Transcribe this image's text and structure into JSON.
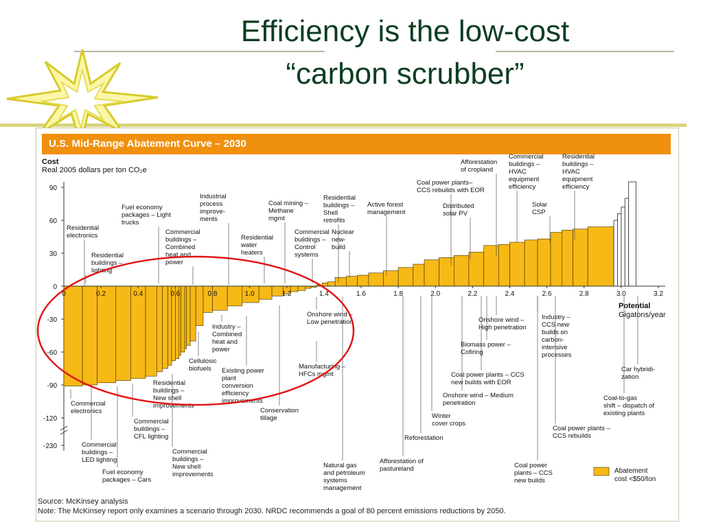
{
  "slide": {
    "title_line1": "Efficiency is the low-cost",
    "title_line2": "“carbon scrubber”"
  },
  "panel": {
    "header": "U.S. Mid-Range Abatement Curve – 2030",
    "source": "Source: McKinsey analysis",
    "note": "Note: The McKinsey report only examines a scenario through 2030. NRDC recommends a goal of 80 percent emissions reductions by 2050."
  },
  "colors": {
    "bar": "#f7b916",
    "header": "#f0900f",
    "title": "#0c3d22",
    "highlight": "#e01515"
  },
  "chart_data": {
    "type": "bar",
    "title": "U.S. Mid-Range Abatement Curve – 2030",
    "ylabel_line1": "Cost",
    "ylabel_line2": "Real 2005 dollars per ton CO₂e",
    "xlabel_line1": "Potential",
    "xlabel_line2": "Gigatons/year",
    "xlim": [
      0,
      3.2
    ],
    "x_ticks": [
      "0.2",
      "0.4",
      "0.6",
      "0.8",
      "1.0",
      "1.2",
      "1.4",
      "1.6",
      "1.8",
      "2.0",
      "2.2",
      "2.4",
      "2.6",
      "2.8",
      "3.0",
      "3.2"
    ],
    "y_ticks": [
      "90",
      "60",
      "30",
      "0",
      "-30",
      "-60",
      "-90",
      "-120",
      "-230"
    ],
    "legend": "Abatement cost <$50/ton",
    "bars": [
      {
        "x0": 0.0,
        "x1": 0.1,
        "y": -91
      },
      {
        "x0": 0.1,
        "x1": 0.18,
        "y": -90
      },
      {
        "x0": 0.18,
        "x1": 0.28,
        "y": -88
      },
      {
        "x0": 0.28,
        "x1": 0.36,
        "y": -86
      },
      {
        "x0": 0.36,
        "x1": 0.44,
        "y": -84
      },
      {
        "x0": 0.44,
        "x1": 0.5,
        "y": -82
      },
      {
        "x0": 0.5,
        "x1": 0.53,
        "y": -78
      },
      {
        "x0": 0.53,
        "x1": 0.56,
        "y": -75
      },
      {
        "x0": 0.56,
        "x1": 0.58,
        "y": -72
      },
      {
        "x0": 0.58,
        "x1": 0.6,
        "y": -68
      },
      {
        "x0": 0.6,
        "x1": 0.62,
        "y": -66
      },
      {
        "x0": 0.62,
        "x1": 0.63,
        "y": -63
      },
      {
        "x0": 0.63,
        "x1": 0.65,
        "y": -60
      },
      {
        "x0": 0.65,
        "x1": 0.66,
        "y": -57
      },
      {
        "x0": 0.66,
        "x1": 0.68,
        "y": -54
      },
      {
        "x0": 0.68,
        "x1": 0.71,
        "y": -50
      },
      {
        "x0": 0.71,
        "x1": 0.75,
        "y": -36
      },
      {
        "x0": 0.75,
        "x1": 0.8,
        "y": -24
      },
      {
        "x0": 0.8,
        "x1": 0.88,
        "y": -22
      },
      {
        "x0": 0.88,
        "x1": 0.96,
        "y": -18
      },
      {
        "x0": 0.96,
        "x1": 1.05,
        "y": -15
      },
      {
        "x0": 1.05,
        "x1": 1.12,
        "y": -12
      },
      {
        "x0": 1.12,
        "x1": 1.18,
        "y": -9
      },
      {
        "x0": 1.18,
        "x1": 1.22,
        "y": -7
      },
      {
        "x0": 1.22,
        "x1": 1.26,
        "y": -5
      },
      {
        "x0": 1.26,
        "x1": 1.3,
        "y": -4
      },
      {
        "x0": 1.3,
        "x1": 1.33,
        "y": -2
      },
      {
        "x0": 1.33,
        "x1": 1.36,
        "y": -1
      },
      {
        "x0": 1.36,
        "x1": 1.39,
        "y": 1
      },
      {
        "x0": 1.39,
        "x1": 1.42,
        "y": 3
      },
      {
        "x0": 1.42,
        "x1": 1.46,
        "y": 4
      },
      {
        "x0": 1.46,
        "x1": 1.52,
        "y": 8
      },
      {
        "x0": 1.52,
        "x1": 1.58,
        "y": 9
      },
      {
        "x0": 1.58,
        "x1": 1.64,
        "y": 10
      },
      {
        "x0": 1.64,
        "x1": 1.72,
        "y": 12
      },
      {
        "x0": 1.72,
        "x1": 1.8,
        "y": 14
      },
      {
        "x0": 1.8,
        "x1": 1.88,
        "y": 17
      },
      {
        "x0": 1.88,
        "x1": 1.94,
        "y": 20
      },
      {
        "x0": 1.94,
        "x1": 2.02,
        "y": 24
      },
      {
        "x0": 2.02,
        "x1": 2.1,
        "y": 26
      },
      {
        "x0": 2.1,
        "x1": 2.18,
        "y": 28
      },
      {
        "x0": 2.18,
        "x1": 2.26,
        "y": 31
      },
      {
        "x0": 2.26,
        "x1": 2.34,
        "y": 37
      },
      {
        "x0": 2.34,
        "x1": 2.4,
        "y": 38
      },
      {
        "x0": 2.4,
        "x1": 2.48,
        "y": 40
      },
      {
        "x0": 2.48,
        "x1": 2.55,
        "y": 42
      },
      {
        "x0": 2.55,
        "x1": 2.62,
        "y": 43
      },
      {
        "x0": 2.62,
        "x1": 2.68,
        "y": 49
      },
      {
        "x0": 2.68,
        "x1": 2.74,
        "y": 51
      },
      {
        "x0": 2.74,
        "x1": 2.82,
        "y": 52
      },
      {
        "x0": 2.82,
        "x1": 2.96,
        "y": 54
      }
    ],
    "over_threshold_bars": [
      {
        "x0": 2.96,
        "x1": 2.98,
        "y": 60
      },
      {
        "x0": 2.98,
        "x1": 3.0,
        "y": 66
      },
      {
        "x0": 3.0,
        "x1": 3.02,
        "y": 72
      },
      {
        "x0": 3.02,
        "x1": 3.04,
        "y": 80
      },
      {
        "x0": 3.04,
        "x1": 3.08,
        "y": 95
      }
    ],
    "annotations": [
      {
        "name": "residential-electronics",
        "x": 0.08,
        "lines": [
          "Residential",
          "electronics"
        ]
      },
      {
        "name": "residential-buildings-lighting",
        "x": 0.16,
        "lines": [
          "Residential",
          "buildings –",
          "lighting"
        ]
      },
      {
        "name": "fuel-economy-light-trucks",
        "x": 0.45,
        "lines": [
          "Fuel economy",
          "packages – Light",
          "trucks"
        ]
      },
      {
        "name": "commercial-buildings-combined-heat-power",
        "x": 0.62,
        "lines": [
          "Commercial",
          "buildings –",
          "Combined",
          "heat and",
          "power"
        ]
      },
      {
        "name": "industrial-process-improvements",
        "x": 0.82,
        "lines": [
          "Industrial",
          "process",
          "improve-",
          "ments"
        ]
      },
      {
        "name": "residential-water-heaters",
        "x": 1.0,
        "lines": [
          "Residential",
          "water",
          "heaters"
        ]
      },
      {
        "name": "coal-mining-methane",
        "x": 1.15,
        "lines": [
          "Coal mining –",
          "Methane",
          "mgmt"
        ]
      },
      {
        "name": "commercial-buildings-control-systems",
        "x": 1.32,
        "lines": [
          "Commercial",
          "buildings –",
          "Control",
          "systems"
        ]
      },
      {
        "name": "residential-buildings-shell-retrofits",
        "x": 1.46,
        "lines": [
          "Residential",
          "buildings –",
          "Shell",
          "retrofits"
        ]
      },
      {
        "name": "nuclear-new-build",
        "x": 1.52,
        "lines": [
          "Nuclear",
          "new-",
          "build"
        ]
      },
      {
        "name": "active-forest-management",
        "x": 1.76,
        "lines": [
          "Active forest",
          "management"
        ]
      },
      {
        "name": "coal-power-ccs-rebuilds-eor",
        "x": 2.08,
        "lines": [
          "Coal power plants–",
          "CCS rebuilds with EOR"
        ]
      },
      {
        "name": "distributed-solar-pv",
        "x": 2.22,
        "lines": [
          "Distributed",
          "solar PV"
        ]
      },
      {
        "name": "afforestation-cropland",
        "x": 2.26,
        "lines": [
          "Afforestation",
          "of cropland"
        ]
      },
      {
        "name": "commercial-buildings-hvac",
        "x": 2.54,
        "lines": [
          "Commercial",
          "buildings –",
          "HVAC",
          "equipment",
          "efficiency"
        ]
      },
      {
        "name": "residential-buildings-hvac",
        "x": 2.74,
        "lines": [
          "Residential",
          "buildings –",
          "HVAC",
          "equipment",
          "efficiency"
        ]
      },
      {
        "name": "solar-csp",
        "x": 2.68,
        "lines": [
          "Solar",
          "CSP"
        ]
      },
      {
        "name": "commercial-electronics",
        "x": 0.04,
        "lines": [
          "Commercial",
          "electronics"
        ]
      },
      {
        "name": "commercial-buildings-led-lighting",
        "x": 0.14,
        "lines": [
          "Commercial",
          "buildings –",
          "LED lighting"
        ]
      },
      {
        "name": "fuel-economy-cars",
        "x": 0.28,
        "lines": [
          "Fuel economy",
          "packages – Cars"
        ]
      },
      {
        "name": "commercial-buildings-cfl-lighting",
        "x": 0.38,
        "lines": [
          "Commercial",
          "buildings –",
          "CFL lighting"
        ]
      },
      {
        "name": "residential-buildings-new-shell",
        "x": 0.5,
        "lines": [
          "Residential",
          "buildings –",
          "New shell",
          "improvements"
        ]
      },
      {
        "name": "commercial-buildings-new-shell",
        "x": 0.6,
        "lines": [
          "Commercial",
          "buildings –",
          "New shell",
          "improvements"
        ]
      },
      {
        "name": "cellulosic-biofuels",
        "x": 0.73,
        "lines": [
          "Cellulosic",
          "biofuels"
        ]
      },
      {
        "name": "industry-combined-heat-power",
        "x": 0.84,
        "lines": [
          "Industry –",
          "Combined",
          "heat and",
          "power"
        ]
      },
      {
        "name": "existing-power-plant-efficiency",
        "x": 1.0,
        "lines": [
          "Existing power",
          "plant",
          "conversion",
          "efficiency",
          "improvements"
        ]
      },
      {
        "name": "conservation-tillage",
        "x": 1.21,
        "lines": [
          "Conservation",
          "tillage"
        ]
      },
      {
        "name": "onshore-wind-low",
        "x": 1.48,
        "lines": [
          "Onshore wind –",
          "Low penetration"
        ]
      },
      {
        "name": "manufacturing-hfcs",
        "x": 1.42,
        "lines": [
          "Manufacturing –",
          "HFCs mgmt"
        ]
      },
      {
        "name": "natural-gas-petroleum-systems",
        "x": 1.56,
        "lines": [
          "Natural gas",
          "and petroleum",
          "systems",
          "management"
        ]
      },
      {
        "name": "afforestation-pastureland",
        "x": 1.78,
        "lines": [
          "Afforestation of",
          "pastureland"
        ]
      },
      {
        "name": "reforestation",
        "x": 1.9,
        "lines": [
          "Reforestation"
        ]
      },
      {
        "name": "winter-cover-crops",
        "x": 1.99,
        "lines": [
          "Winter",
          "cover crops"
        ]
      },
      {
        "name": "onshore-wind-medium",
        "x": 2.16,
        "lines": [
          "Onshore wind – Medium",
          "penetration"
        ]
      },
      {
        "name": "coal-power-ccs-new-eor",
        "x": 2.28,
        "lines": [
          "Coal power plants – CCS",
          "new builds with EOR"
        ]
      },
      {
        "name": "biomass-power-cofiring",
        "x": 2.38,
        "lines": [
          "Biomass  power –",
          "Cofiring"
        ]
      },
      {
        "name": "onshore-wind-high",
        "x": 2.42,
        "lines": [
          "Onshore wind –",
          "High penetration"
        ]
      },
      {
        "name": "industry-ccs-new-builds",
        "x": 2.66,
        "lines": [
          "Industry –",
          "CCS new",
          "builds on",
          "carbon-",
          "intensive",
          "processes"
        ]
      },
      {
        "name": "coal-power-ccs-new-builds",
        "x": 2.52,
        "lines": [
          "Coal power",
          "plants – CCS",
          "new builds"
        ]
      },
      {
        "name": "coal-power-ccs-rebuilds",
        "x": 2.78,
        "lines": [
          "Coal power plants –",
          "CCS rebuilds"
        ]
      },
      {
        "name": "coal-to-gas-shift",
        "x": 3.0,
        "lines": [
          "Coal-to-gas",
          "shift – dispatch of",
          "existing plants"
        ]
      },
      {
        "name": "car-hybridization",
        "x": 3.06,
        "lines": [
          "Car hybridi-",
          "zation"
        ]
      }
    ]
  }
}
